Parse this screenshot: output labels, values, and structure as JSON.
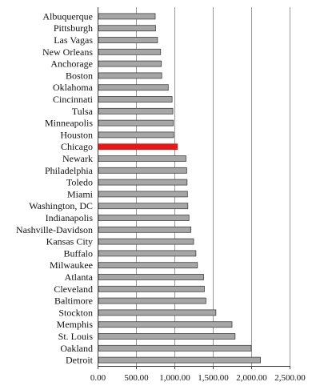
{
  "chart_data": {
    "type": "bar",
    "orientation": "horizontal",
    "title": "",
    "xlabel": "",
    "ylabel": "",
    "categories": [
      "Albuquerque",
      "Pittsburgh",
      "Las Vagas",
      "New Orleans",
      "Anchorage",
      "Boston",
      "Oklahoma",
      "Cincinnati",
      "Tulsa",
      "Minneapolis",
      "Houston",
      "Chicago",
      "Newark",
      "Philadelphia",
      "Toledo",
      "Miami",
      "Washington, DC",
      "Indianapolis",
      "Nashville-Davidson",
      "Kansas City",
      "Buffalo",
      "Milwaukee",
      "Atlanta",
      "Cleveland",
      "Baltimore",
      "Stockton",
      "Memphis",
      "St. Louis",
      "Oakland",
      "Detroit"
    ],
    "values": [
      750,
      755,
      780,
      820,
      830,
      835,
      920,
      970,
      980,
      985,
      990,
      1040,
      1150,
      1160,
      1165,
      1170,
      1175,
      1190,
      1215,
      1250,
      1280,
      1300,
      1380,
      1390,
      1410,
      1540,
      1750,
      1790,
      2000,
      2120
    ],
    "highlight_category": "Chicago",
    "xlim": [
      0,
      2500
    ],
    "x_ticks": [
      "0.00",
      "500.00",
      "1,000.00",
      "1,500.00",
      "2,000.00",
      "2,500.00"
    ],
    "grid": "vertical",
    "legend": "none",
    "colors": {
      "bar": "#a6a6a6",
      "highlight": "#e31a1c",
      "bar_stroke": "#404040",
      "grid": "#9a9a9a"
    }
  }
}
